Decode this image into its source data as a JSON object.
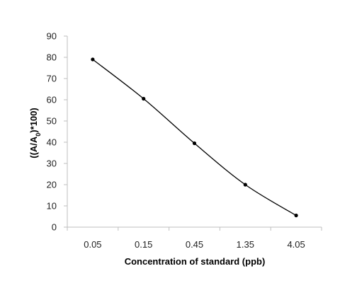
{
  "chart_data": {
    "type": "line",
    "categories": [
      "0.05",
      "0.15",
      "0.45",
      "1.35",
      "4.05"
    ],
    "series": [
      {
        "values": [
          79,
          60.5,
          39.5,
          20,
          5.5
        ],
        "color": "#000000",
        "marker": "circle",
        "smooth": true
      }
    ],
    "xlabel": "Concentration of standard (ppb)",
    "ylabel": {
      "prefix": "((A/A",
      "subscript": "0",
      "suffix": ")*100)"
    },
    "ylim": [
      0,
      90
    ],
    "yticks": [
      0,
      10,
      20,
      30,
      40,
      50,
      60,
      70,
      80,
      90
    ],
    "grid": false,
    "legend": "none"
  }
}
